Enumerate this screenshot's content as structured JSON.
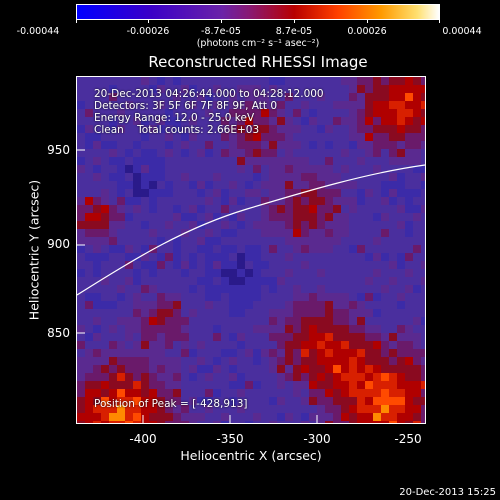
{
  "colorbar": {
    "ticks": [
      "-0.00044",
      "-0.00026",
      "-8.7e-05",
      "8.7e-05",
      "0.00026",
      "0.00044"
    ],
    "units": "(photons cm⁻² s⁻¹ asec⁻²)"
  },
  "title": "Reconstructed RHESSI Image",
  "info": {
    "time_range": "20-Dec-2013 04:26:44.000 to 04:28:12.000",
    "detectors": "Detectors: 3F 5F 6F 7F 8F 9F, Att 0",
    "energy": "Energy Range: 12.0 - 25.0 keV",
    "clean": "Clean    Total counts: 2.66E+03",
    "peak": "Position of Peak = [-428,913]"
  },
  "axes": {
    "xlabel": "Heliocentric X (arcsec)",
    "ylabel": "Heliocentric Y (arcsec)",
    "xticks": [
      "-400",
      "-350",
      "-300",
      "-250"
    ],
    "yticks": [
      "950",
      "900",
      "850"
    ]
  },
  "timestamp": "20-Dec-2013 15:25"
}
